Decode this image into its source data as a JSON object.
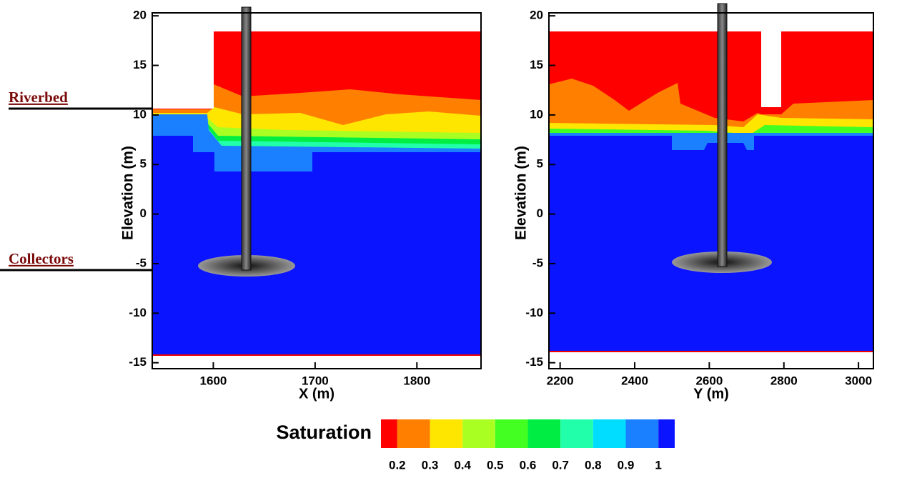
{
  "annotations": [
    "Riverbed",
    "Collectors"
  ],
  "chart_data": [
    {
      "type": "contour",
      "xlabel": "X (m)",
      "ylabel": "Elevation (m)",
      "xlim": [
        1540,
        1863
      ],
      "ylim": [
        -15.6,
        20.3
      ],
      "xticks": [
        1600,
        1700,
        1800
      ],
      "yticks": [
        -15,
        -10,
        -5,
        0,
        5,
        10,
        15,
        20
      ]
    },
    {
      "type": "contour",
      "xlabel": "Y (m)",
      "ylabel": "Elevation (m)",
      "xlim": [
        2170,
        3040
      ],
      "ylim": [
        -15.6,
        20.3
      ],
      "xticks": [
        2200,
        2400,
        2600,
        2800,
        3000
      ],
      "yticks": [
        -15,
        -10,
        -5,
        0,
        5,
        10,
        15,
        20
      ]
    }
  ],
  "colorbar": {
    "title": "Saturation",
    "lim": [
      0.15,
      1.05
    ],
    "colors": [
      "#ff0000",
      "#ff7f00",
      "#ffe600",
      "#aaff22",
      "#44ff22",
      "#00ee44",
      "#22ffaa",
      "#00ddff",
      "#1a80ff",
      "#0a14ff"
    ],
    "ticks": [
      0.2,
      0.3,
      0.4,
      0.5,
      0.6,
      0.7,
      0.8,
      0.9,
      1
    ]
  }
}
